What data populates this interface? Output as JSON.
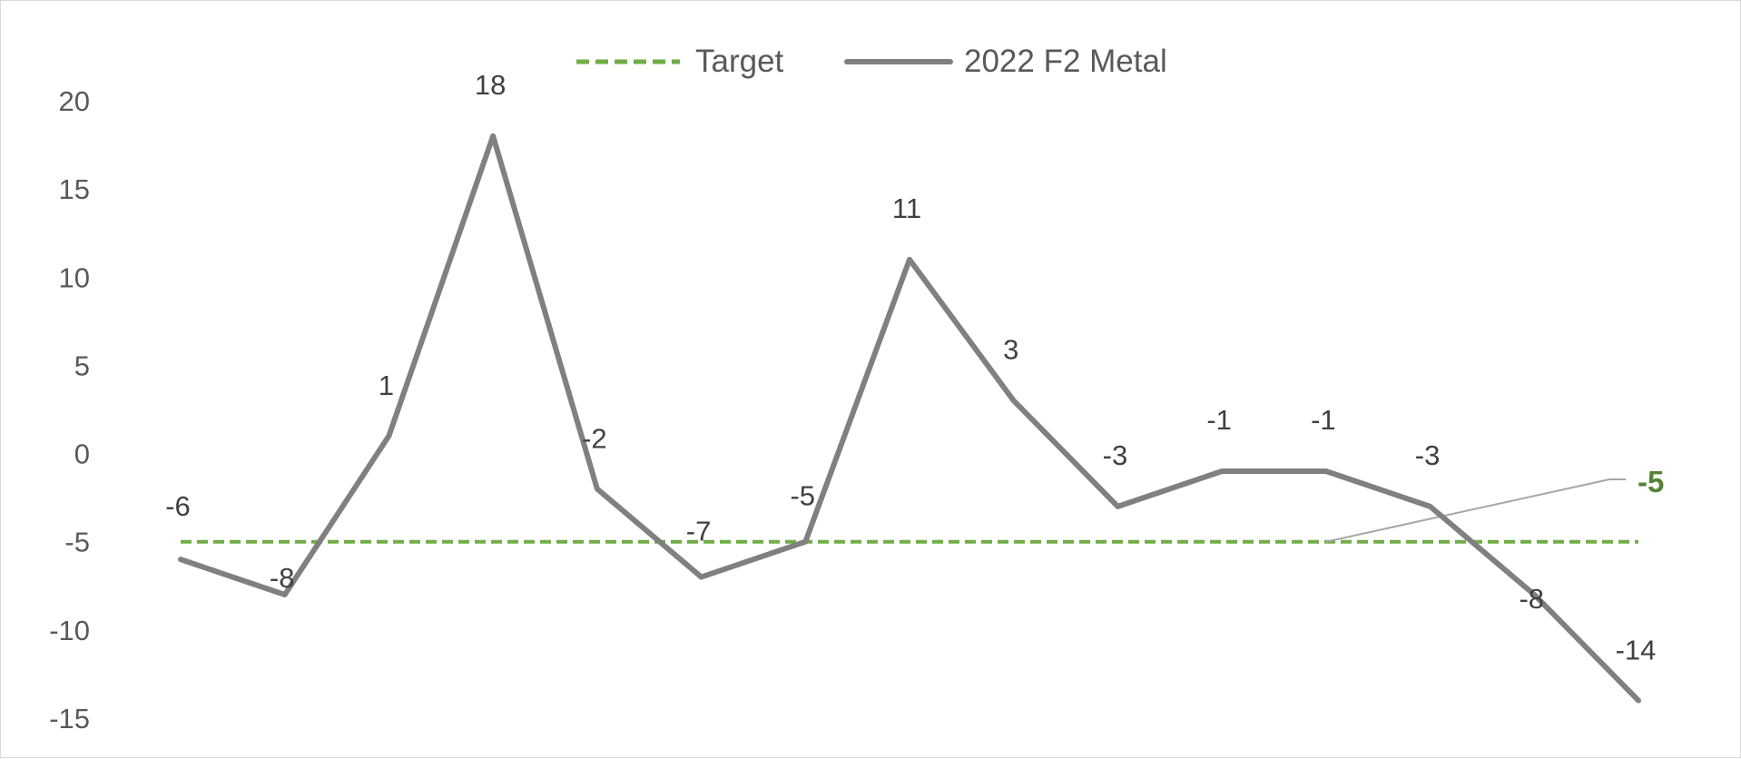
{
  "chart_data": {
    "type": "line",
    "title": "",
    "xlabel": "",
    "ylabel": "",
    "ylim": [
      -15,
      20
    ],
    "yticks": [
      20,
      15,
      10,
      5,
      0,
      -5,
      -10,
      -15
    ],
    "grid": false,
    "legend_position": "top-center",
    "categories_count": 15,
    "series": [
      {
        "name": "Target",
        "style": "dashed",
        "color": "#70ad47",
        "values": [
          -5,
          -5,
          -5,
          -5,
          -5,
          -5,
          -5,
          -5,
          -5,
          -5,
          -5,
          -5,
          -5,
          -5,
          -5
        ]
      },
      {
        "name": "2022 F2 Metal",
        "style": "solid",
        "color": "#808080",
        "values": [
          -6,
          -8,
          1,
          18,
          -2,
          -7,
          -5,
          11,
          3,
          -3,
          -1,
          -1,
          -3,
          -8,
          -14
        ],
        "data_labels": [
          "-6",
          "-8",
          "1",
          "18",
          "-2",
          "-7",
          "-5",
          "11",
          "3",
          "-3",
          "-1",
          "-1",
          "-3",
          "-8",
          "-14"
        ]
      }
    ],
    "annotations": [
      {
        "text": "-5",
        "series": "Target",
        "color": "#548235",
        "bold": true
      }
    ]
  }
}
